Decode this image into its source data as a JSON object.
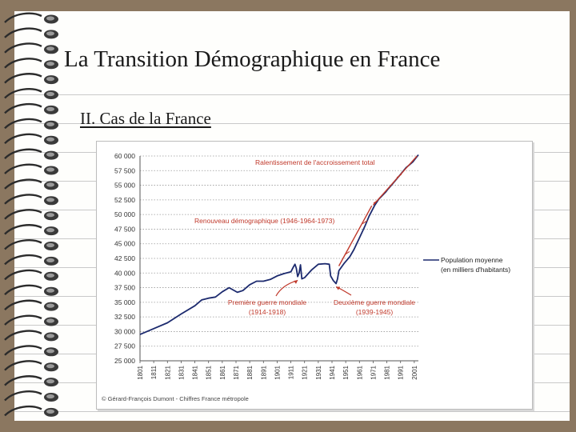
{
  "slide": {
    "title": "La Transition Démographique en France",
    "subtitle": "II. Cas de la France"
  },
  "chart_data": {
    "type": "line",
    "title": "",
    "xlabel": "",
    "ylabel": "",
    "x": [
      1801,
      1811,
      1821,
      1831,
      1841,
      1846,
      1851,
      1856,
      1861,
      1866,
      1872,
      1876,
      1881,
      1886,
      1891,
      1896,
      1901,
      1906,
      1911,
      1913,
      1914,
      1915,
      1916,
      1917,
      1918,
      1919,
      1921,
      1926,
      1931,
      1936,
      1939,
      1940,
      1942,
      1944,
      1945,
      1946,
      1950,
      1954,
      1957,
      1962,
      1965,
      1968,
      1972,
      1975,
      1980,
      1982,
      1985,
      1990,
      1995,
      2000,
      2004
    ],
    "series": [
      {
        "name": "Population moyenne (en milliers d'habitants)",
        "values": [
          29500,
          30500,
          31500,
          33000,
          34400,
          35400,
          35700,
          35900,
          36800,
          37500,
          36700,
          37000,
          38000,
          38600,
          38600,
          38900,
          39500,
          39900,
          40200,
          41100,
          41500,
          40800,
          39400,
          40000,
          41400,
          39000,
          39200,
          40500,
          41500,
          41600,
          41500,
          39500,
          38700,
          38200,
          39000,
          40400,
          41700,
          42800,
          44000,
          46500,
          48000,
          49700,
          51500,
          52600,
          53800,
          54400,
          55200,
          56600,
          58000,
          59000,
          60200
        ]
      }
    ],
    "xticks": [
      "1801",
      "1811",
      "1821",
      "1831",
      "1841",
      "1851",
      "1861",
      "1871",
      "1881",
      "1891",
      "1901",
      "1911",
      "1921",
      "1931",
      "1941",
      "1951",
      "1961",
      "1971",
      "1981",
      "1991",
      "2001"
    ],
    "xlim": [
      1801,
      2004
    ],
    "ylim": [
      25000,
      60000
    ],
    "yticks": [
      "25 000",
      "27 500",
      "30 000",
      "32 500",
      "35 000",
      "37 500",
      "40 000",
      "42 500",
      "45 000",
      "47 500",
      "50 000",
      "52 500",
      "55 000",
      "57 500",
      "60 000"
    ],
    "grid": "horizontal dotted",
    "legend": "right",
    "legend_label": "Population moyenne (en milliers d'habitants)",
    "annotations": [
      {
        "text": "Ralentissement de l'accroissement total"
      },
      {
        "text": "Renouveau démographique (1946-1964-1973)"
      },
      {
        "text": "Première guerre mondiale",
        "text2": "(1914-1918)"
      },
      {
        "text": "Deuxième guerre mondiale",
        "text2": "(1939-1945)"
      }
    ],
    "credit": "© Gérard-François Dumont - Chiffres France métropole",
    "colors": {
      "line": "#1c2a6e",
      "annotation": "#c0392b"
    }
  }
}
